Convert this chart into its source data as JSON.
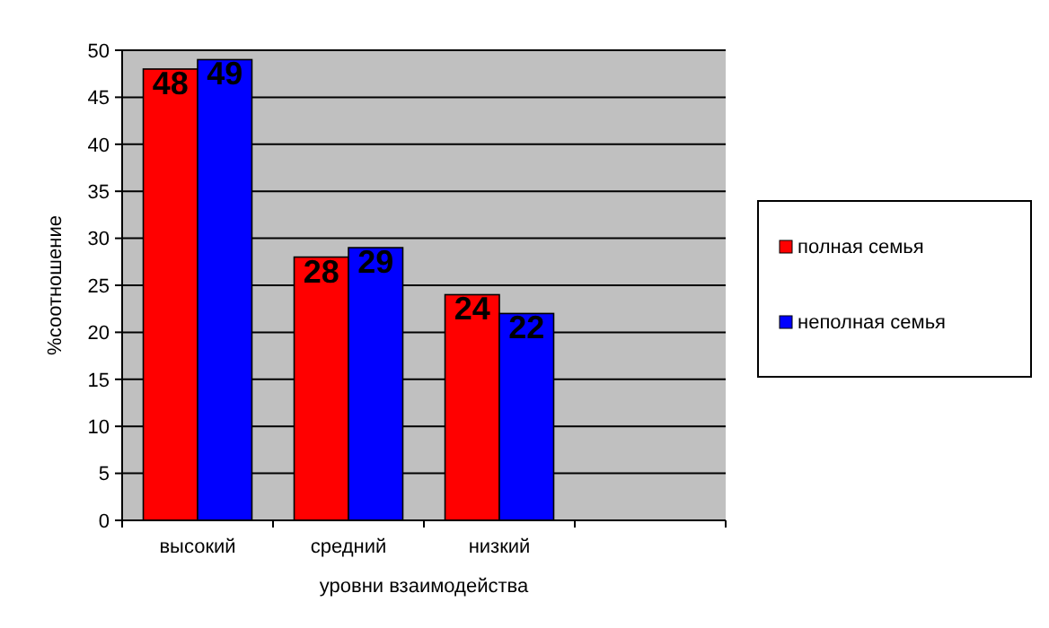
{
  "chart_data": {
    "type": "bar",
    "xlabel": "уровни взаимодейства",
    "ylabel": "%соотношение",
    "categories": [
      "высокий",
      "средний",
      "низкий",
      null
    ],
    "series": [
      {
        "name": "полная семья",
        "color": "#ff0000",
        "values": [
          48,
          28,
          24,
          null
        ]
      },
      {
        "name": "неполная семья",
        "color": "#0000ff",
        "values": [
          49,
          29,
          22,
          null
        ]
      }
    ],
    "ylim": [
      0,
      50
    ],
    "yticks": [
      0,
      5,
      10,
      15,
      20,
      25,
      30,
      35,
      40,
      45,
      50
    ],
    "grid": "y",
    "legend": "right",
    "data_labels": true
  }
}
